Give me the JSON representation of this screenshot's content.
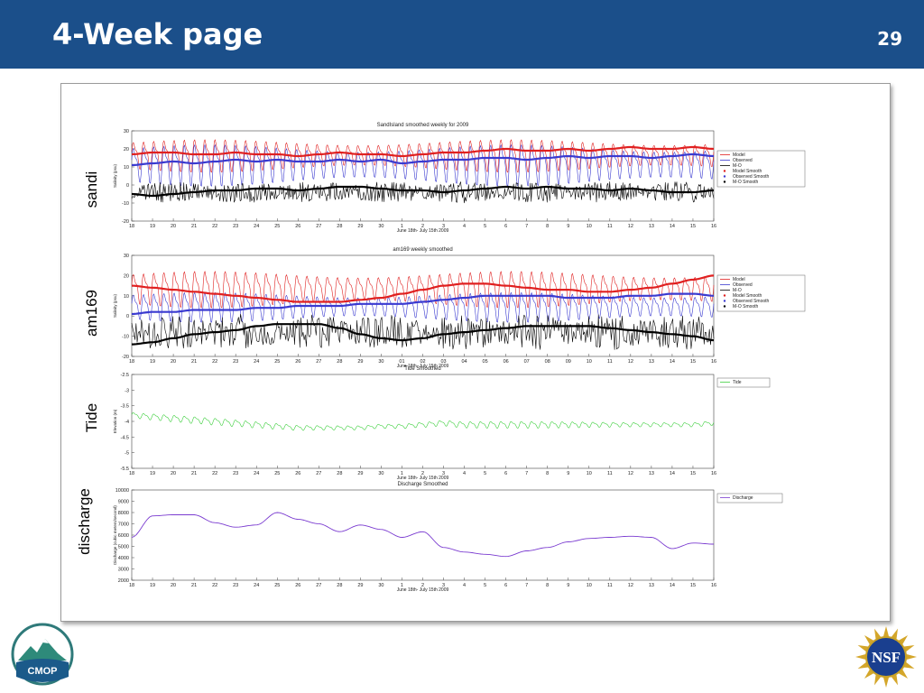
{
  "slide": {
    "title": "4-Week page",
    "number": "29"
  },
  "logos": {
    "left_text": "CMOP",
    "right_text": "NSF"
  },
  "colors": {
    "header": "#1b4f8a",
    "model": "#e02020",
    "observed": "#3a3ad0",
    "mo": "#000000",
    "tide": "#3ccf3c",
    "discharge": "#7a3bd0"
  },
  "panels_labels": [
    "sandi",
    "am169",
    "Tide",
    "discharge"
  ],
  "chart_data": [
    {
      "type": "line",
      "title": "SandIsland smoothed weekly for 2009",
      "side_label": "sandi",
      "xlabel": "June 18th- July 15th 2009",
      "ylabel": "Salinity (psu)",
      "x_ticks": [
        "18",
        "19",
        "20",
        "21",
        "22",
        "23",
        "24",
        "25",
        "26",
        "27",
        "28",
        "29",
        "30",
        "1",
        "2",
        "3",
        "4",
        "5",
        "6",
        "7",
        "8",
        "9",
        "10",
        "11",
        "12",
        "13",
        "14",
        "15",
        "16"
      ],
      "y_ticks": [
        30,
        20,
        10,
        0,
        -10,
        -20
      ],
      "ylim": [
        -20,
        30
      ],
      "legend": [
        "Model",
        "Observed",
        "M-O",
        "Model Smooth",
        "Observed Smooth",
        "M-O Smooth"
      ],
      "series": [
        {
          "name": "Model Smooth",
          "style": "smooth",
          "color": "#e02020",
          "values": [
            17,
            18,
            18,
            17,
            17,
            18,
            17,
            17,
            16,
            17,
            18,
            17,
            17,
            16,
            17,
            18,
            18,
            19,
            20,
            19,
            19,
            20,
            19,
            20,
            21,
            20,
            20,
            21,
            20
          ]
        },
        {
          "name": "Observed Smooth",
          "style": "smooth",
          "color": "#3a3ad0",
          "values": [
            11,
            12,
            13,
            12,
            13,
            14,
            13,
            14,
            13,
            13,
            14,
            13,
            14,
            12,
            13,
            14,
            14,
            15,
            15,
            14,
            15,
            16,
            15,
            16,
            16,
            15,
            16,
            17,
            16
          ]
        },
        {
          "name": "M-O Smooth",
          "style": "smooth",
          "color": "#000000",
          "values": [
            -5,
            -6,
            -5,
            -4,
            -3,
            -3,
            -2,
            -2,
            -3,
            -2,
            -1,
            -1,
            -2,
            -3,
            -3,
            -4,
            -3,
            -2,
            -1,
            -2,
            -1,
            -2,
            -2,
            -3,
            -2,
            -3,
            -4,
            -4,
            -3
          ]
        },
        {
          "name": "Model",
          "style": "tidal",
          "color": "#e02020",
          "center": 17,
          "amp": 11,
          "cycles": 57
        },
        {
          "name": "Observed",
          "style": "tidal",
          "color": "#3a3ad0",
          "center": 12,
          "amp": 14,
          "cycles": 57
        },
        {
          "name": "M-O",
          "style": "noise",
          "color": "#000000",
          "center": -4,
          "amp": 6,
          "cycles": 110
        }
      ]
    },
    {
      "type": "line",
      "title": "am169 weekly smoothed",
      "side_label": "am169",
      "xlabel": "June 18th- July 15th 2009",
      "ylabel": "Salinity (psu)",
      "x_ticks": [
        "18",
        "19",
        "20",
        "21",
        "22",
        "23",
        "24",
        "25",
        "26",
        "27",
        "28",
        "29",
        "30",
        "01",
        "02",
        "03",
        "04",
        "05",
        "06",
        "07",
        "08",
        "09",
        "10",
        "11",
        "12",
        "13",
        "14",
        "15",
        "16"
      ],
      "y_ticks": [
        30,
        20,
        10,
        0,
        -10,
        -20
      ],
      "ylim": [
        -20,
        30
      ],
      "legend": [
        "Model",
        "Observed",
        "M-O",
        "Model Smooth",
        "Observed Smooth",
        "M-O Smooth"
      ],
      "series": [
        {
          "name": "Model Smooth",
          "style": "smooth",
          "color": "#e02020",
          "values": [
            15,
            14,
            13,
            12,
            11,
            10,
            9,
            8,
            7,
            7,
            7,
            8,
            9,
            11,
            13,
            15,
            16,
            16,
            15,
            14,
            13,
            13,
            12,
            12,
            13,
            14,
            16,
            18,
            20
          ]
        },
        {
          "name": "Observed Smooth",
          "style": "smooth",
          "color": "#3a3ad0",
          "values": [
            1,
            2,
            2,
            3,
            3,
            3,
            4,
            4,
            5,
            5,
            5,
            6,
            6,
            6,
            7,
            8,
            9,
            10,
            10,
            10,
            10,
            9,
            9,
            9,
            10,
            10,
            11,
            11,
            10
          ]
        },
        {
          "name": "M-O Smooth",
          "style": "smooth",
          "color": "#000000",
          "values": [
            -14,
            -13,
            -11,
            -9,
            -8,
            -7,
            -5,
            -4,
            -4,
            -4,
            -6,
            -9,
            -11,
            -12,
            -11,
            -9,
            -8,
            -7,
            -6,
            -5,
            -5,
            -5,
            -5,
            -6,
            -7,
            -8,
            -9,
            -10,
            -12
          ]
        },
        {
          "name": "Model",
          "style": "tidal",
          "color": "#e02020",
          "center": 14,
          "amp": 11,
          "cycles": 57
        },
        {
          "name": "Observed",
          "style": "tidal",
          "color": "#3a3ad0",
          "center": 5,
          "amp": 9,
          "cycles": 57
        },
        {
          "name": "M-O",
          "style": "noise",
          "color": "#000000",
          "center": -8,
          "amp": 9,
          "cycles": 90
        }
      ]
    },
    {
      "type": "line",
      "title": "Tide Smoothed",
      "side_label": "Tide",
      "xlabel": "June 18th- July 15th 2009",
      "ylabel": "Elevation (m)",
      "x_ticks": [
        "18",
        "19",
        "20",
        "21",
        "22",
        "23",
        "24",
        "25",
        "26",
        "27",
        "28",
        "29",
        "30",
        "1",
        "2",
        "3",
        "4",
        "5",
        "6",
        "7",
        "8",
        "9",
        "10",
        "11",
        "12",
        "13",
        "14",
        "15",
        "16"
      ],
      "y_ticks": [
        -2.5,
        -3,
        -3.5,
        -4,
        -4.5,
        -5,
        -5.5
      ],
      "ylim": [
        -5.5,
        -2.5
      ],
      "legend": [
        "Tide"
      ],
      "series": [
        {
          "name": "Tide",
          "style": "tidal",
          "color": "#3ccf3c",
          "center": -4.05,
          "amp": 0.13,
          "cycles": 57,
          "offsets": [
            0.25,
            0.2,
            0.15,
            0.1,
            0.05,
            0.0,
            -0.05,
            -0.1,
            -0.15,
            -0.15,
            -0.15,
            -0.15,
            -0.1,
            -0.1,
            -0.05,
            0.0,
            -0.05,
            -0.05,
            -0.05,
            -0.05,
            -0.05,
            -0.05,
            -0.05,
            -0.05,
            -0.05,
            -0.05,
            -0.05,
            -0.05,
            0.0
          ]
        }
      ]
    },
    {
      "type": "line",
      "title": "Discharge Smoothed",
      "side_label": "discharge",
      "xlabel": "June 18th- July 15th 2009",
      "ylabel": "Discharge (cubic meters/second)",
      "x_ticks": [
        "18",
        "19",
        "20",
        "21",
        "22",
        "23",
        "24",
        "25",
        "26",
        "27",
        "28",
        "29",
        "30",
        "1",
        "2",
        "3",
        "4",
        "5",
        "6",
        "7",
        "8",
        "9",
        "10",
        "11",
        "12",
        "13",
        "14",
        "15",
        "16"
      ],
      "y_ticks": [
        10000,
        9000,
        8000,
        7000,
        6000,
        5000,
        4000,
        3000,
        2000
      ],
      "ylim": [
        2000,
        10000
      ],
      "legend": [
        "Discharge"
      ],
      "series": [
        {
          "name": "Discharge",
          "style": "smooth",
          "color": "#7a3bd0",
          "values": [
            5800,
            7700,
            7800,
            7800,
            7100,
            6700,
            6900,
            8000,
            7400,
            7000,
            6300,
            6900,
            6500,
            5800,
            6300,
            4900,
            4500,
            4300,
            4100,
            4600,
            4900,
            5400,
            5700,
            5800,
            5900,
            5800,
            4800,
            5300,
            5200
          ]
        }
      ]
    }
  ]
}
